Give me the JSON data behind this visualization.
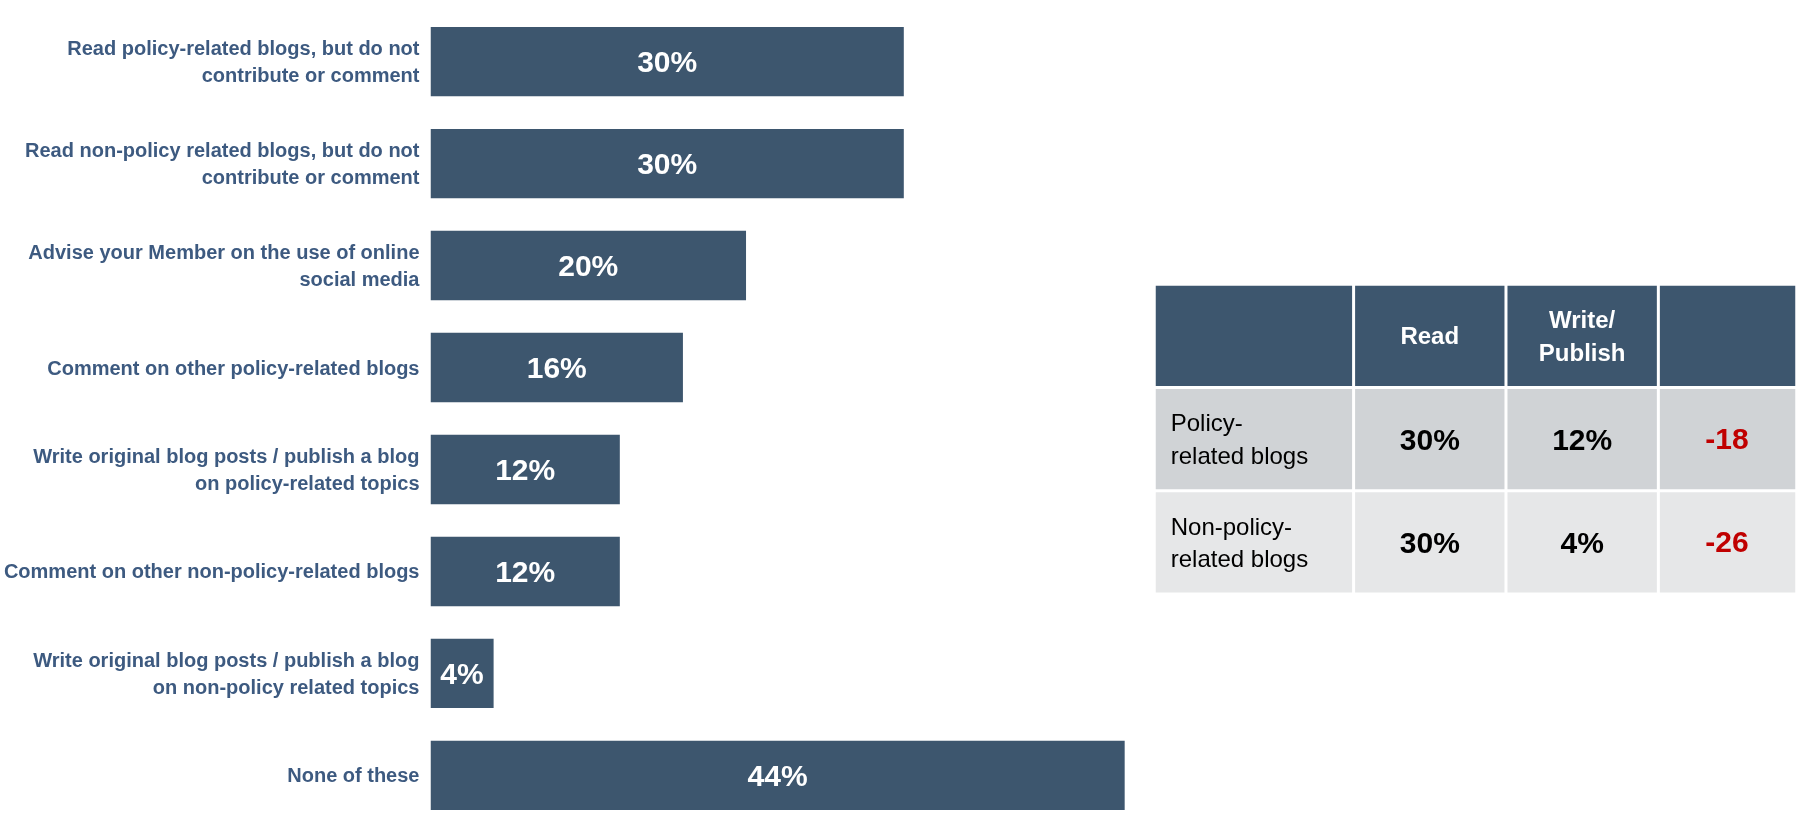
{
  "chart_data": [
    {
      "type": "bar",
      "orientation": "horizontal",
      "color": "#3d566e",
      "value_labels": [
        "30%",
        "30%",
        "20%",
        "16%",
        "12%",
        "12%",
        "4%",
        "44%"
      ],
      "categories": [
        "Read policy-related blogs, but do not contribute or comment",
        "Read non-policy related blogs, but do not contribute or comment",
        "Advise your Member on the use of online social media",
        "Comment on other policy-related blogs",
        "Write original blog posts / publish a blog on policy-related topics",
        "Comment on other non-policy-related blogs",
        "Write original blog posts / publish a blog on non-policy related topics",
        "None of these"
      ],
      "values": [
        30,
        30,
        20,
        16,
        12,
        12,
        4,
        44
      ]
    },
    {
      "type": "other",
      "annotations": [
        "Read",
        "Write/ Publish",
        "Policy-related blogs",
        "30%",
        "12%",
        "-18",
        "Non-policy-related blogs",
        "30%",
        "4%",
        "-26"
      ]
    }
  ]
}
